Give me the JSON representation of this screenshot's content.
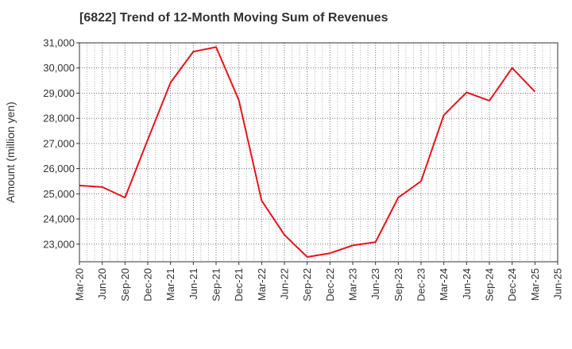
{
  "title": "[6822]  Trend of 12-Month Moving Sum of Revenues",
  "chart_data": {
    "type": "line",
    "title": "[6822]  Trend of 12-Month Moving Sum of Revenues",
    "xlabel": "",
    "ylabel": "Amount (million yen)",
    "x": [
      "Mar-20",
      "Jun-20",
      "Sep-20",
      "Dec-20",
      "Mar-21",
      "Jun-21",
      "Sep-21",
      "Dec-21",
      "Mar-22",
      "Jun-22",
      "Sep-22",
      "Dec-22",
      "Mar-23",
      "Jun-23",
      "Sep-23",
      "Dec-23",
      "Mar-24",
      "Jun-24",
      "Sep-24",
      "Dec-24",
      "Mar-25",
      "Jun-25"
    ],
    "ylim": [
      22300,
      31000
    ],
    "yticks": [
      23000,
      24000,
      25000,
      26000,
      27000,
      28000,
      29000,
      30000,
      31000
    ],
    "ytick_labels": [
      "23,000",
      "24,000",
      "25,000",
      "26,000",
      "27,000",
      "28,000",
      "29,000",
      "30,000",
      "31,000"
    ],
    "grid": true,
    "series": [
      {
        "color": "#e8141b",
        "values": [
          25330,
          25270,
          24850,
          27150,
          29420,
          30650,
          30830,
          28720,
          24730,
          23370,
          22490,
          22640,
          22950,
          23080,
          24850,
          25500,
          28130,
          29030,
          28700,
          30000,
          29060,
          null
        ]
      }
    ]
  }
}
